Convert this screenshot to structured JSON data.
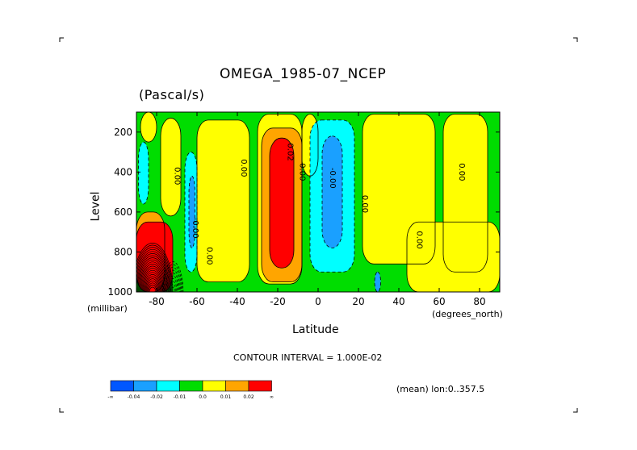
{
  "chart_data": {
    "type": "heatmap",
    "title": "OMEGA_1985-07_NCEP",
    "units": "(Pascal/s)",
    "xlabel": "Latitude",
    "ylabel": "Level",
    "x_unit_label": "(degrees_north)",
    "y_unit_label": "(millibar)",
    "xlim": [
      -90,
      90
    ],
    "ylim": [
      1000,
      100
    ],
    "x_ticks": [
      -80,
      -60,
      -40,
      -20,
      0,
      20,
      40,
      60,
      80
    ],
    "x_tick_labels": [
      "-80",
      "-60",
      "-40",
      "-20",
      "0",
      "20",
      "40",
      "60",
      "80"
    ],
    "y_ticks": [
      200,
      400,
      600,
      800,
      1000
    ],
    "y_tick_labels": [
      "200",
      "400",
      "600",
      "800",
      "1000"
    ],
    "contour_interval_label": "CONTOUR INTERVAL = 1.000E-02",
    "mean_label": "(mean) lon:0..357.5",
    "contour_labels": [
      {
        "lat": -71,
        "lev": 420,
        "text": "0.00"
      },
      {
        "lat": -62,
        "lev": 680,
        "text": "-0.00"
      },
      {
        "lat": -55,
        "lev": 820,
        "text": "0.00"
      },
      {
        "lat": -38,
        "lev": 380,
        "text": "0.00"
      },
      {
        "lat": -15,
        "lev": 300,
        "text": "0.02"
      },
      {
        "lat": -9,
        "lev": 400,
        "text": "0.00"
      },
      {
        "lat": 6,
        "lev": 430,
        "text": "-0.00"
      },
      {
        "lat": 22,
        "lev": 560,
        "text": "0.00"
      },
      {
        "lat": 49,
        "lev": 740,
        "text": "0.00"
      },
      {
        "lat": 70,
        "lev": 400,
        "text": "0.00"
      }
    ],
    "colorbar": {
      "colors": [
        "#0057ff",
        "#1aa0ff",
        "#00ffff",
        "#00dd00",
        "#ffff00",
        "#ffa500",
        "#ff0000"
      ],
      "labels": [
        "-∞",
        "-0.04",
        "-0.02",
        "-0.01",
        "0.0",
        "0.01",
        "0.02",
        "∞"
      ]
    },
    "regions": [
      {
        "level": "green",
        "lat": [
          -90,
          90
        ],
        "lev": [
          100,
          1000
        ]
      },
      {
        "level": "yellow",
        "lat": [
          -88,
          -80
        ],
        "lev": [
          100,
          250
        ]
      },
      {
        "level": "yellow",
        "lat": [
          -78,
          -68
        ],
        "lev": [
          130,
          620
        ]
      },
      {
        "level": "yellow",
        "lat": [
          -60,
          -34
        ],
        "lev": [
          140,
          950
        ]
      },
      {
        "level": "yellow",
        "lat": [
          -30,
          -8
        ],
        "lev": [
          110,
          960
        ]
      },
      {
        "level": "yellow",
        "lat": [
          -8,
          0
        ],
        "lev": [
          110,
          420
        ]
      },
      {
        "level": "yellow",
        "lat": [
          22,
          58
        ],
        "lev": [
          110,
          860
        ]
      },
      {
        "level": "yellow",
        "lat": [
          44,
          90
        ],
        "lev": [
          650,
          1000
        ]
      },
      {
        "level": "yellow",
        "lat": [
          62,
          84
        ],
        "lev": [
          110,
          900
        ]
      },
      {
        "level": "orange",
        "lat": [
          -28,
          -8
        ],
        "lev": [
          180,
          950
        ]
      },
      {
        "level": "red",
        "lat": [
          -24,
          -12
        ],
        "lev": [
          230,
          880
        ]
      },
      {
        "level": "cyan",
        "lat": [
          -89,
          -84
        ],
        "lev": [
          250,
          560
        ]
      },
      {
        "level": "cyan",
        "lat": [
          -66,
          -60
        ],
        "lev": [
          300,
          900
        ]
      },
      {
        "level": "blue",
        "lat": [
          -64,
          -61
        ],
        "lev": [
          420,
          780
        ]
      },
      {
        "level": "cyan",
        "lat": [
          -4,
          18
        ],
        "lev": [
          140,
          900
        ]
      },
      {
        "level": "blue",
        "lat": [
          2,
          12
        ],
        "lev": [
          220,
          780
        ]
      },
      {
        "level": "blue",
        "lat": [
          28,
          31
        ],
        "lev": [
          900,
          1000
        ]
      },
      {
        "level": "orange",
        "lat": [
          -90,
          -76
        ],
        "lev": [
          600,
          1000
        ]
      },
      {
        "level": "red",
        "lat": [
          -90,
          -72
        ],
        "lev": [
          650,
          1000
        ]
      }
    ]
  }
}
